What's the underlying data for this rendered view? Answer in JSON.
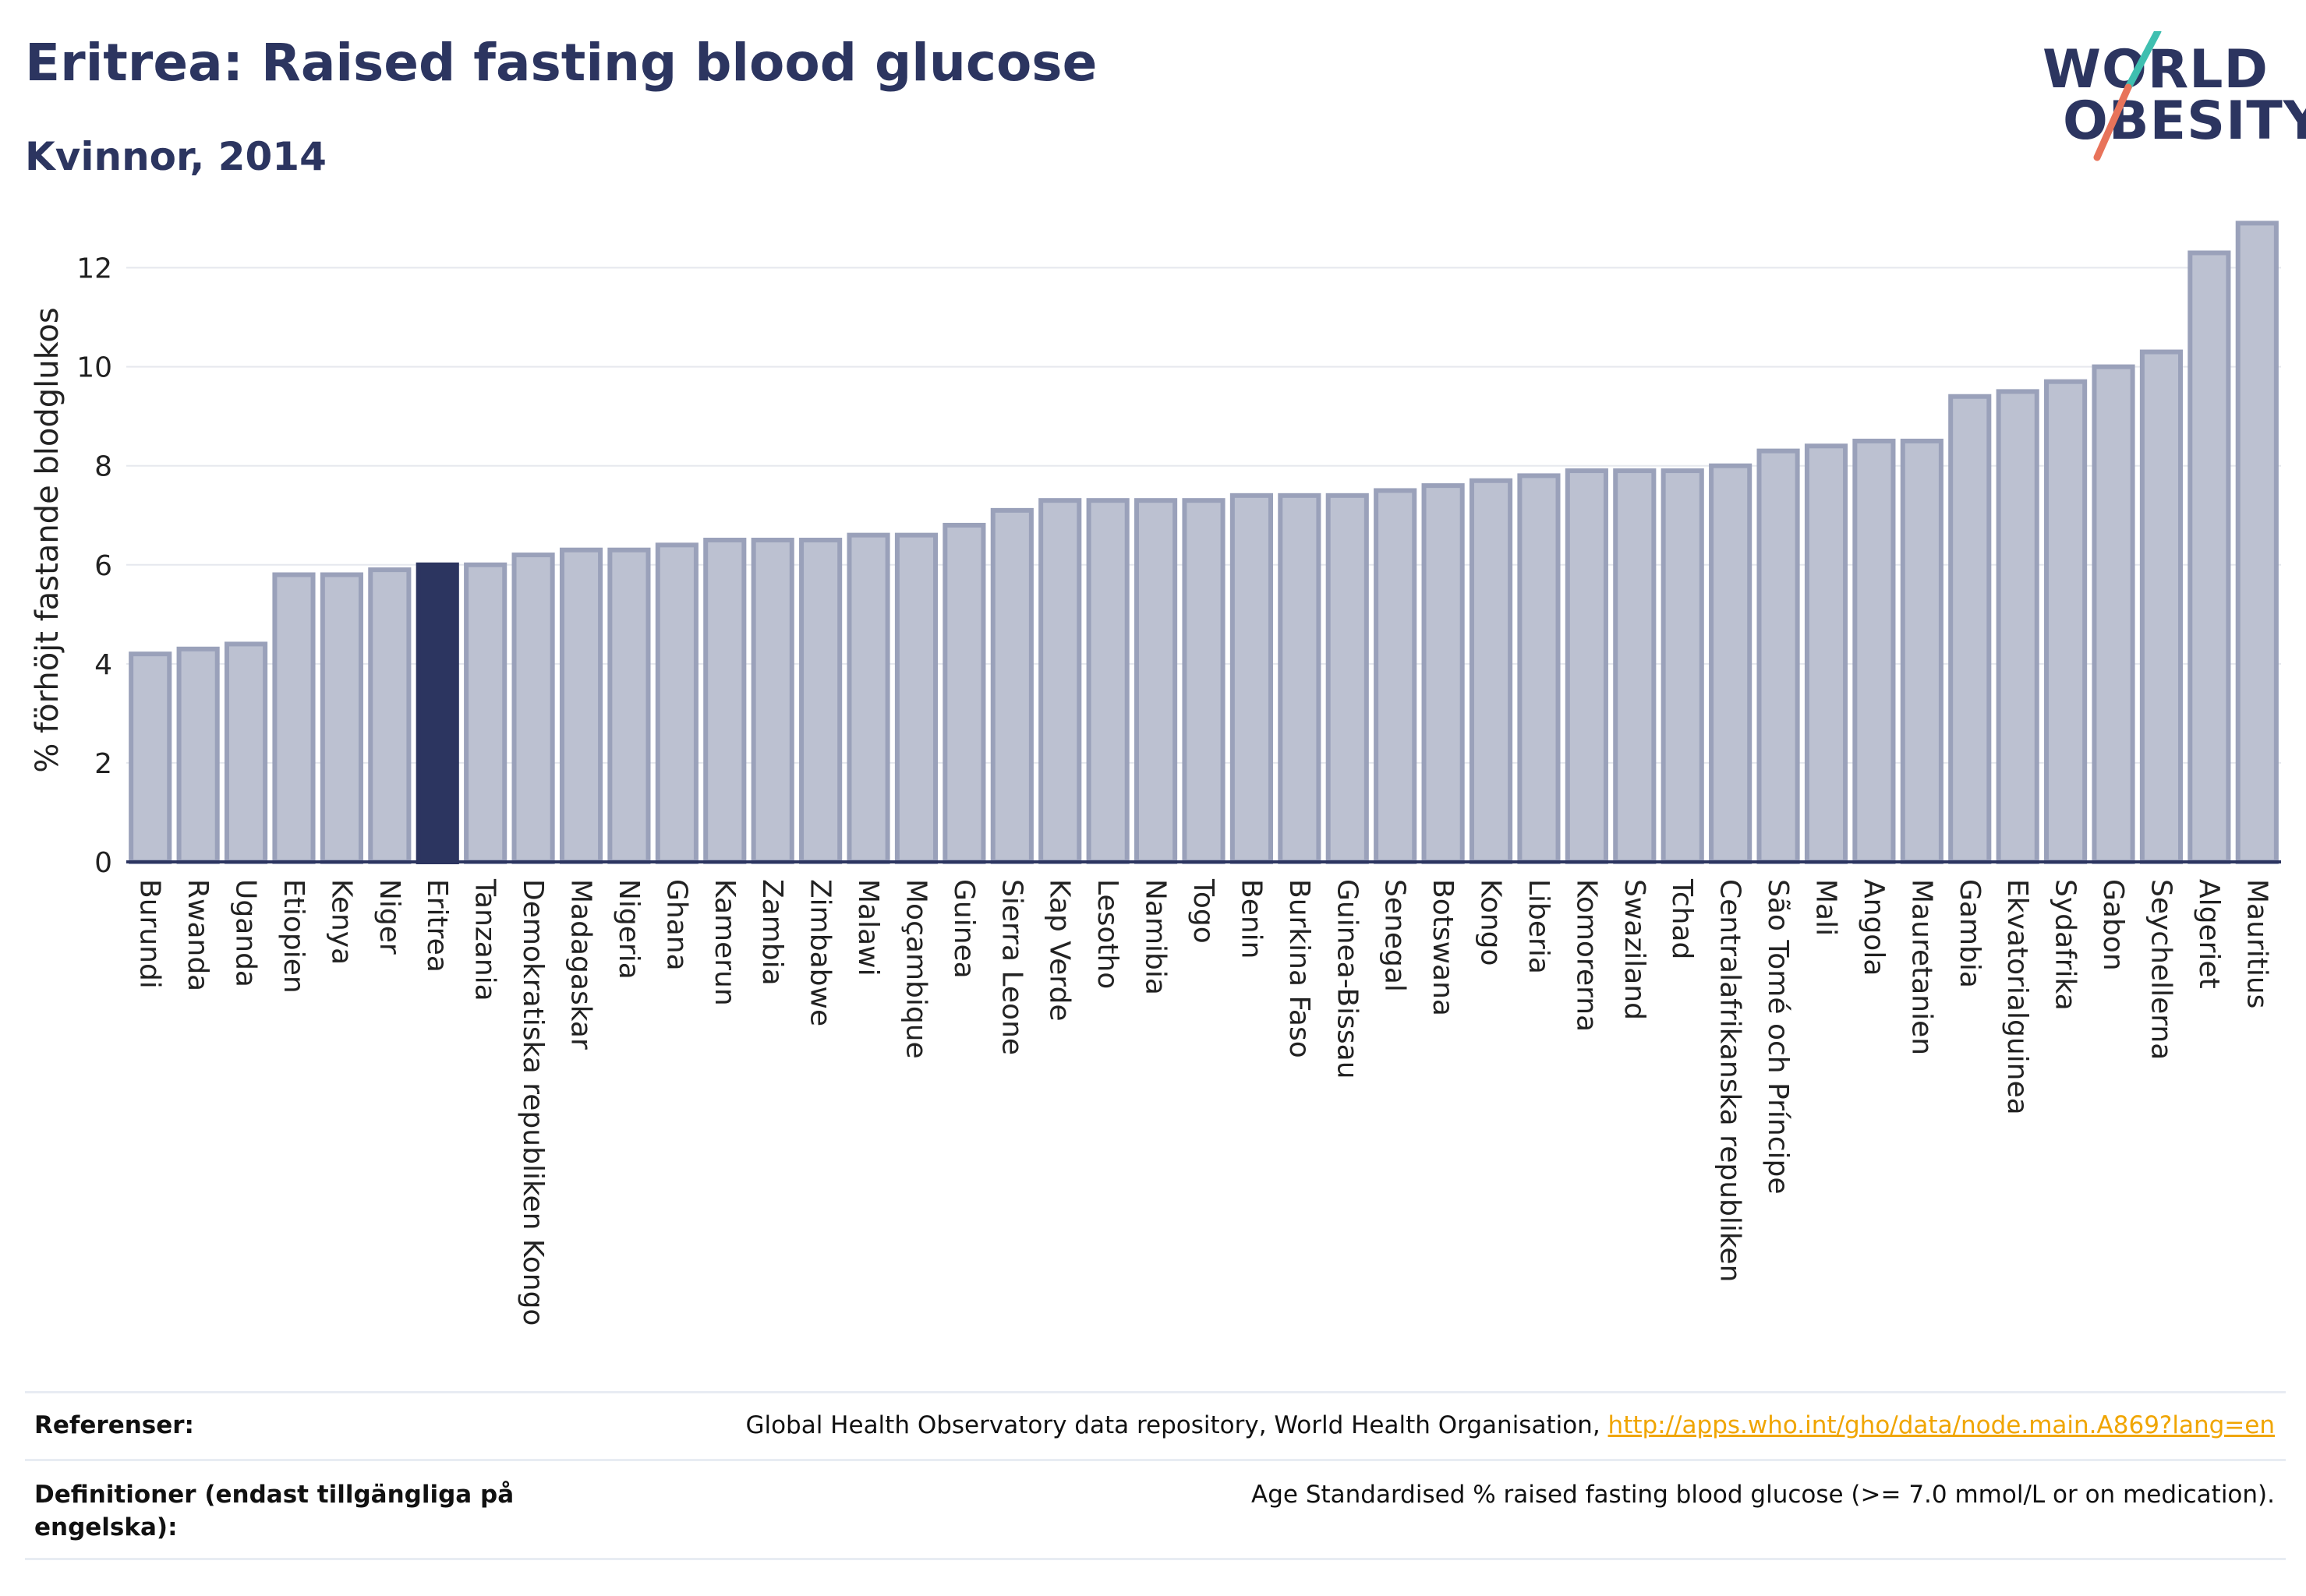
{
  "header": {
    "title": "Eritrea: Raised fasting blood glucose",
    "subtitle": "Kvinnor, 2014"
  },
  "logo": {
    "line1": "WORLD",
    "line2": "OBESITY",
    "colors": {
      "text": "#2c3560",
      "slash_top": "#3fbfb0",
      "slash_bottom": "#e8735a"
    }
  },
  "colors": {
    "bar": "#bcc1d1",
    "bar_border": "#9aa1ba",
    "highlight": "#2c3560",
    "grid": "#e6e8ee",
    "axis": "#2c3560"
  },
  "chart_data": {
    "type": "bar",
    "ylabel": "% förhöjt fastande blodglukos",
    "ylim": [
      0,
      13
    ],
    "yticks": [
      0,
      2,
      4,
      6,
      8,
      10,
      12
    ],
    "grid": true,
    "highlight": "Eritrea",
    "categories": [
      "Burundi",
      "Rwanda",
      "Uganda",
      "Etiopien",
      "Kenya",
      "Niger",
      "Eritrea",
      "Tanzania",
      "Demokratiska republiken Kongo",
      "Madagaskar",
      "Nigeria",
      "Ghana",
      "Kamerun",
      "Zambia",
      "Zimbabwe",
      "Malawi",
      "Moçambique",
      "Guinea",
      "Sierra Leone",
      "Kap Verde",
      "Lesotho",
      "Namibia",
      "Togo",
      "Benin",
      "Burkina Faso",
      "Guinea-Bissau",
      "Senegal",
      "Botswana",
      "Kongo",
      "Liberia",
      "Komorerna",
      "Swaziland",
      "Tchad",
      "Centralafrikanska republiken",
      "São Tomé och Príncipe",
      "Mali",
      "Angola",
      "Mauretanien",
      "Gambia",
      "Ekvatorialguinea",
      "Sydafrika",
      "Gabon",
      "Seychellerna",
      "Algeriet",
      "Mauritius"
    ],
    "values": [
      4.2,
      4.3,
      4.4,
      5.8,
      5.8,
      5.9,
      6.0,
      6.0,
      6.2,
      6.3,
      6.3,
      6.4,
      6.5,
      6.5,
      6.5,
      6.6,
      6.6,
      6.8,
      7.1,
      7.3,
      7.3,
      7.3,
      7.3,
      7.4,
      7.4,
      7.4,
      7.5,
      7.6,
      7.7,
      7.8,
      7.9,
      7.9,
      7.9,
      8.0,
      8.3,
      8.4,
      8.5,
      8.5,
      9.4,
      9.5,
      9.7,
      10.0,
      10.3,
      12.3,
      12.9
    ]
  },
  "references": {
    "label": "Referenser:",
    "text": "Global Health Observatory data repository, World Health Organisation, ",
    "link": "http://apps.who.int/gho/data/node.main.A869?lang=en"
  },
  "definitions": {
    "label": "Definitioner (endast tillgängliga på engelska):",
    "text": "Age Standardised % raised fasting blood glucose (>= 7.0 mmol/L or on medication)."
  }
}
